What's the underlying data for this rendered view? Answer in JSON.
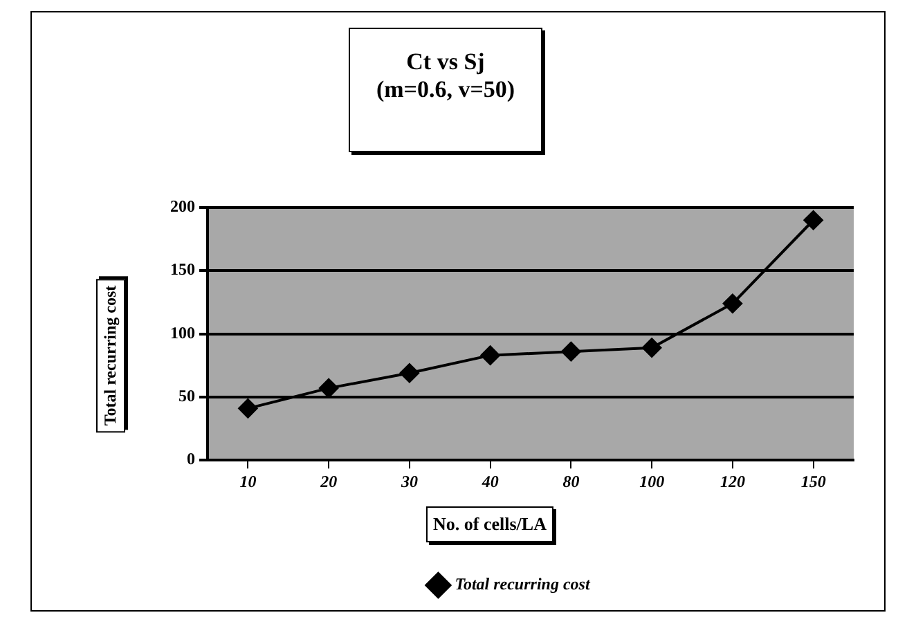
{
  "chart_data": {
    "type": "line",
    "title": "Ct vs Sj\n(m=0.6, v=50)",
    "xlabel": "No. of cells/LA",
    "ylabel": "Total recurring cost",
    "categories": [
      "10",
      "20",
      "30",
      "40",
      "80",
      "100",
      "120",
      "150"
    ],
    "series": [
      {
        "name": "Total recurring cost",
        "color": "#000000",
        "values": [
          41,
          57,
          69,
          83,
          86,
          89,
          124,
          190
        ]
      }
    ],
    "ylim": [
      0,
      200
    ],
    "yticks": [
      0,
      50,
      100,
      150,
      200
    ],
    "grid": "y",
    "legend": "bottom",
    "marker": "diamond",
    "line_style": "solid"
  }
}
